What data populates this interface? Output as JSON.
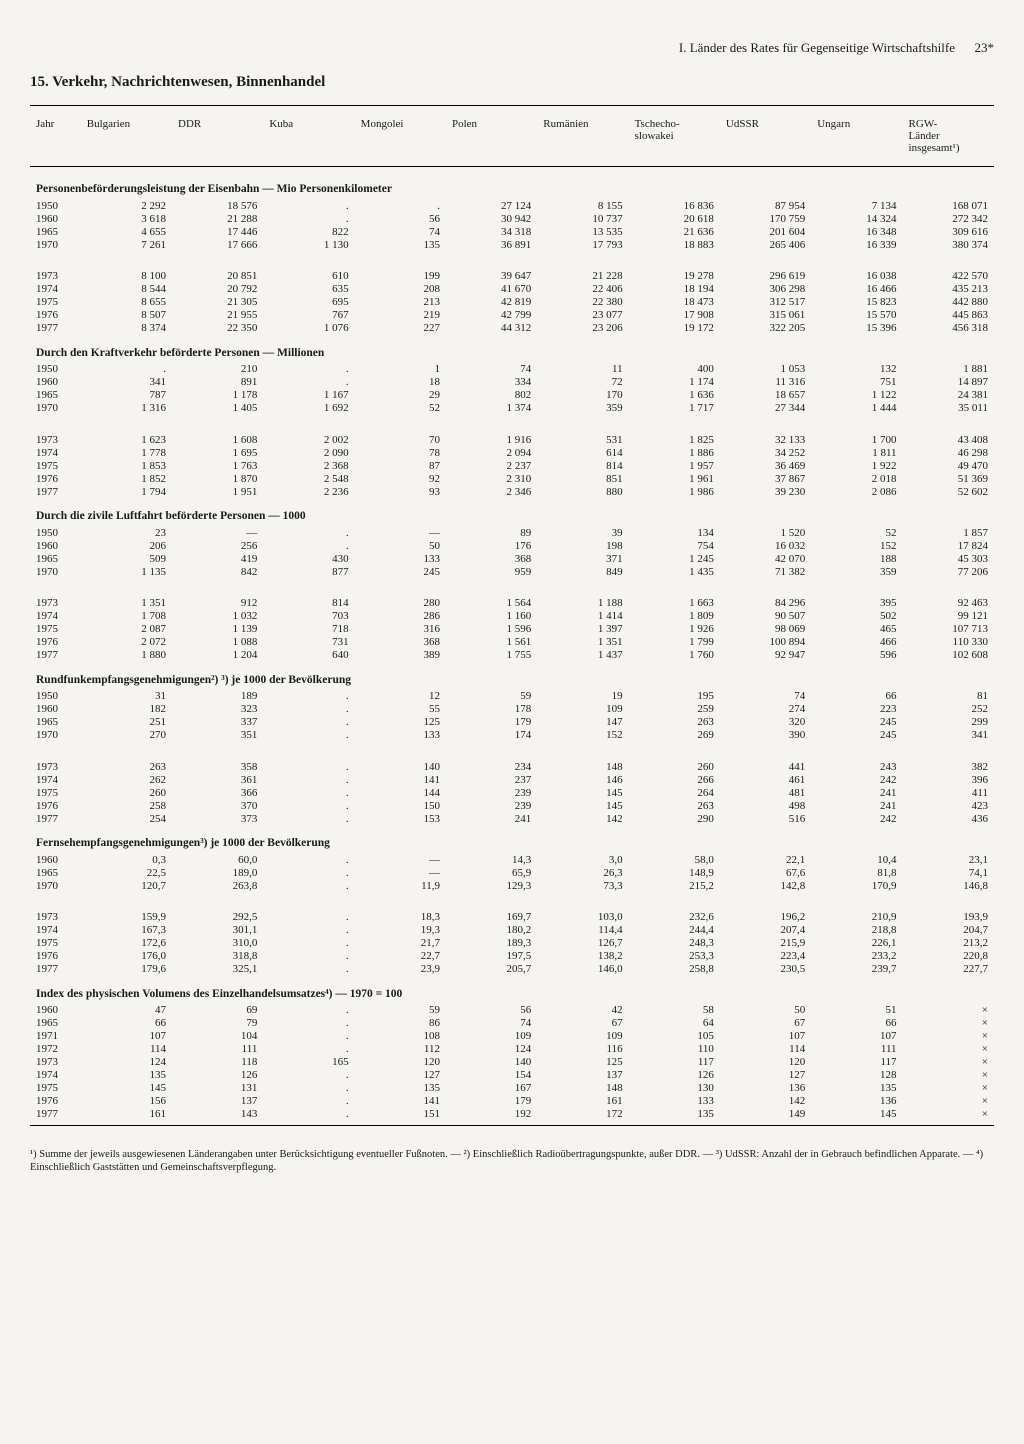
{
  "page_header": {
    "running_head": "I. Länder des Rates für Gegenseitige Wirtschaftshilfe",
    "page_number": "23*"
  },
  "section_title": "15. Verkehr, Nachrichtenwesen, Binnenhandel",
  "columns": [
    "Jahr",
    "Bulgarien",
    "DDR",
    "Kuba",
    "Mongolei",
    "Polen",
    "Rumänien",
    "Tschecho-\nslowakei",
    "UdSSR",
    "Ungarn",
    "RGW-\nLänder\ninsgesamt¹)"
  ],
  "tables": [
    {
      "title": "Personenbeförderungsleistung der Eisenbahn — Mio Personenkilometer",
      "blocks": [
        [
          [
            "1950",
            "2 292",
            "18 576",
            ".",
            ".",
            "27 124",
            "8 155",
            "16 836",
            "87 954",
            "7 134",
            "168 071"
          ],
          [
            "1960",
            "3 618",
            "21 288",
            ".",
            "56",
            "30 942",
            "10 737",
            "20 618",
            "170 759",
            "14 324",
            "272 342"
          ],
          [
            "1965",
            "4 655",
            "17 446",
            "822",
            "74",
            "34 318",
            "13 535",
            "21 636",
            "201 604",
            "16 348",
            "309 616"
          ],
          [
            "1970",
            "7 261",
            "17 666",
            "1 130",
            "135",
            "36 891",
            "17 793",
            "18 883",
            "265 406",
            "16 339",
            "380 374"
          ]
        ],
        [
          [
            "1973",
            "8 100",
            "20 851",
            "610",
            "199",
            "39 647",
            "21 228",
            "19 278",
            "296 619",
            "16 038",
            "422 570"
          ],
          [
            "1974",
            "8 544",
            "20 792",
            "635",
            "208",
            "41 670",
            "22 406",
            "18 194",
            "306 298",
            "16 466",
            "435 213"
          ],
          [
            "1975",
            "8 655",
            "21 305",
            "695",
            "213",
            "42 819",
            "22 380",
            "18 473",
            "312 517",
            "15 823",
            "442 880"
          ],
          [
            "1976",
            "8 507",
            "21 955",
            "767",
            "219",
            "42 799",
            "23 077",
            "17 908",
            "315 061",
            "15 570",
            "445 863"
          ],
          [
            "1977",
            "8 374",
            "22 350",
            "1 076",
            "227",
            "44 312",
            "23 206",
            "19 172",
            "322 205",
            "15 396",
            "456 318"
          ]
        ]
      ]
    },
    {
      "title": "Durch den Kraftverkehr beförderte Personen — Millionen",
      "blocks": [
        [
          [
            "1950",
            ".",
            "210",
            ".",
            "1",
            "74",
            "11",
            "400",
            "1 053",
            "132",
            "1 881"
          ],
          [
            "1960",
            "341",
            "891",
            ".",
            "18",
            "334",
            "72",
            "1 174",
            "11 316",
            "751",
            "14 897"
          ],
          [
            "1965",
            "787",
            "1 178",
            "1 167",
            "29",
            "802",
            "170",
            "1 636",
            "18 657",
            "1 122",
            "24 381"
          ],
          [
            "1970",
            "1 316",
            "1 405",
            "1 692",
            "52",
            "1 374",
            "359",
            "1 717",
            "27 344",
            "1 444",
            "35 011"
          ]
        ],
        [
          [
            "1973",
            "1 623",
            "1 608",
            "2 002",
            "70",
            "1 916",
            "531",
            "1 825",
            "32 133",
            "1 700",
            "43 408"
          ],
          [
            "1974",
            "1 778",
            "1 695",
            "2 090",
            "78",
            "2 094",
            "614",
            "1 886",
            "34 252",
            "1 811",
            "46 298"
          ],
          [
            "1975",
            "1 853",
            "1 763",
            "2 368",
            "87",
            "2 237",
            "814",
            "1 957",
            "36 469",
            "1 922",
            "49 470"
          ],
          [
            "1976",
            "1 852",
            "1 870",
            "2 548",
            "92",
            "2 310",
            "851",
            "1 961",
            "37 867",
            "2 018",
            "51 369"
          ],
          [
            "1977",
            "1 794",
            "1 951",
            "2 236",
            "93",
            "2 346",
            "880",
            "1 986",
            "39 230",
            "2 086",
            "52 602"
          ]
        ]
      ]
    },
    {
      "title": "Durch die zivile Luftfahrt beförderte Personen — 1000",
      "blocks": [
        [
          [
            "1950",
            "23",
            "—",
            ".",
            "—",
            "89",
            "39",
            "134",
            "1 520",
            "52",
            "1 857"
          ],
          [
            "1960",
            "206",
            "256",
            ".",
            "50",
            "176",
            "198",
            "754",
            "16 032",
            "152",
            "17 824"
          ],
          [
            "1965",
            "509",
            "419",
            "430",
            "133",
            "368",
            "371",
            "1 245",
            "42 070",
            "188",
            "45 303"
          ],
          [
            "1970",
            "1 135",
            "842",
            "877",
            "245",
            "959",
            "849",
            "1 435",
            "71 382",
            "359",
            "77 206"
          ]
        ],
        [
          [
            "1973",
            "1 351",
            "912",
            "814",
            "280",
            "1 564",
            "1 188",
            "1 663",
            "84 296",
            "395",
            "92 463"
          ],
          [
            "1974",
            "1 708",
            "1 032",
            "703",
            "286",
            "1 160",
            "1 414",
            "1 809",
            "90 507",
            "502",
            "99 121"
          ],
          [
            "1975",
            "2 087",
            "1 139",
            "718",
            "316",
            "1 596",
            "1 397",
            "1 926",
            "98 069",
            "465",
            "107 713"
          ],
          [
            "1976",
            "2 072",
            "1 088",
            "731",
            "368",
            "1 561",
            "1 351",
            "1 799",
            "100 894",
            "466",
            "110 330"
          ],
          [
            "1977",
            "1 880",
            "1 204",
            "640",
            "389",
            "1 755",
            "1 437",
            "1 760",
            "92 947",
            "596",
            "102 608"
          ]
        ]
      ]
    },
    {
      "title": "Rundfunkempfangsgenehmigungen²) ³) je 1000 der Bevölkerung",
      "blocks": [
        [
          [
            "1950",
            "31",
            "189",
            ".",
            "12",
            "59",
            "19",
            "195",
            "74",
            "66",
            "81"
          ],
          [
            "1960",
            "182",
            "323",
            ".",
            "55",
            "178",
            "109",
            "259",
            "274",
            "223",
            "252"
          ],
          [
            "1965",
            "251",
            "337",
            ".",
            "125",
            "179",
            "147",
            "263",
            "320",
            "245",
            "299"
          ],
          [
            "1970",
            "270",
            "351",
            ".",
            "133",
            "174",
            "152",
            "269",
            "390",
            "245",
            "341"
          ]
        ],
        [
          [
            "1973",
            "263",
            "358",
            ".",
            "140",
            "234",
            "148",
            "260",
            "441",
            "243",
            "382"
          ],
          [
            "1974",
            "262",
            "361",
            ".",
            "141",
            "237",
            "146",
            "266",
            "461",
            "242",
            "396"
          ],
          [
            "1975",
            "260",
            "366",
            ".",
            "144",
            "239",
            "145",
            "264",
            "481",
            "241",
            "411"
          ],
          [
            "1976",
            "258",
            "370",
            ".",
            "150",
            "239",
            "145",
            "263",
            "498",
            "241",
            "423"
          ],
          [
            "1977",
            "254",
            "373",
            ".",
            "153",
            "241",
            "142",
            "290",
            "516",
            "242",
            "436"
          ]
        ]
      ]
    },
    {
      "title": "Fernsehempfangsgenehmigungen³) je 1000 der Bevölkerung",
      "blocks": [
        [
          [
            "1960",
            "0,3",
            "60,0",
            ".",
            "—",
            "14,3",
            "3,0",
            "58,0",
            "22,1",
            "10,4",
            "23,1"
          ],
          [
            "1965",
            "22,5",
            "189,0",
            ".",
            "—",
            "65,9",
            "26,3",
            "148,9",
            "67,6",
            "81,8",
            "74,1"
          ],
          [
            "1970",
            "120,7",
            "263,8",
            ".",
            "11,9",
            "129,3",
            "73,3",
            "215,2",
            "142,8",
            "170,9",
            "146,8"
          ]
        ],
        [
          [
            "1973",
            "159,9",
            "292,5",
            ".",
            "18,3",
            "169,7",
            "103,0",
            "232,6",
            "196,2",
            "210,9",
            "193,9"
          ],
          [
            "1974",
            "167,3",
            "301,1",
            ".",
            "19,3",
            "180,2",
            "114,4",
            "244,4",
            "207,4",
            "218,8",
            "204,7"
          ],
          [
            "1975",
            "172,6",
            "310,0",
            ".",
            "21,7",
            "189,3",
            "126,7",
            "248,3",
            "215,9",
            "226,1",
            "213,2"
          ],
          [
            "1976",
            "176,0",
            "318,8",
            ".",
            "22,7",
            "197,5",
            "138,2",
            "253,3",
            "223,4",
            "233,2",
            "220,8"
          ],
          [
            "1977",
            "179,6",
            "325,1",
            ".",
            "23,9",
            "205,7",
            "146,0",
            "258,8",
            "230,5",
            "239,7",
            "227,7"
          ]
        ]
      ]
    },
    {
      "title": "Index des physischen Volumens des Einzelhandelsumsatzes⁴) — 1970 = 100",
      "blocks": [
        [
          [
            "1960",
            "47",
            "69",
            ".",
            "59",
            "56",
            "42",
            "58",
            "50",
            "51",
            "×"
          ],
          [
            "1965",
            "66",
            "79",
            ".",
            "86",
            "74",
            "67",
            "64",
            "67",
            "66",
            "×"
          ],
          [
            "1971",
            "107",
            "104",
            ".",
            "108",
            "109",
            "109",
            "105",
            "107",
            "107",
            "×"
          ],
          [
            "1972",
            "114",
            "111",
            ".",
            "112",
            "124",
            "116",
            "110",
            "114",
            "111",
            "×"
          ],
          [
            "1973",
            "124",
            "118",
            "165",
            "120",
            "140",
            "125",
            "117",
            "120",
            "117",
            "×"
          ],
          [
            "1974",
            "135",
            "126",
            ".",
            "127",
            "154",
            "137",
            "126",
            "127",
            "128",
            "×"
          ],
          [
            "1975",
            "145",
            "131",
            ".",
            "135",
            "167",
            "148",
            "130",
            "136",
            "135",
            "×"
          ],
          [
            "1976",
            "156",
            "137",
            ".",
            "141",
            "179",
            "161",
            "133",
            "142",
            "136",
            "×"
          ],
          [
            "1977",
            "161",
            "143",
            ".",
            "151",
            "192",
            "172",
            "135",
            "149",
            "145",
            "×"
          ]
        ]
      ]
    }
  ],
  "footnotes": "¹) Summe der jeweils ausgewiesenen Länderangaben unter Berücksichtigung eventueller Fußnoten. — ²) Einschließlich Radioübertragungspunkte, außer DDR. — ³) UdSSR: Anzahl der in Gebrauch befindlichen Apparate. — ⁴) Einschließlich Gaststätten und Gemeinschaftsverpflegung."
}
